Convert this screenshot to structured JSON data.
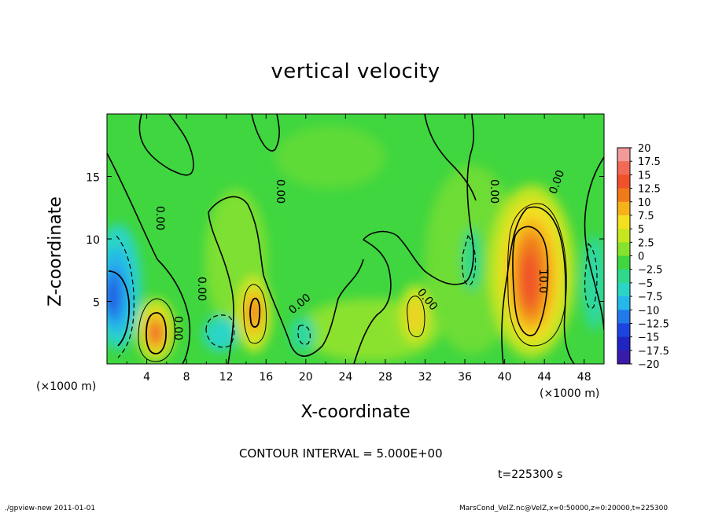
{
  "chart_data": {
    "type": "heatmap",
    "title": "vertical velocity",
    "xlabel": "X-coordinate",
    "ylabel": "Z-coordinate",
    "x_unit_label": "(×1000 m)",
    "xlim": [
      0,
      50
    ],
    "ylim": [
      0,
      20
    ],
    "xticks": [
      "4",
      "8",
      "12",
      "16",
      "20",
      "24",
      "28",
      "32",
      "36",
      "40",
      "44",
      "48"
    ],
    "xtick_values": [
      4,
      8,
      12,
      16,
      20,
      24,
      28,
      32,
      36,
      40,
      44,
      48
    ],
    "yticks": [
      "5",
      "10",
      "15"
    ],
    "ytick_values": [
      5,
      10,
      15
    ],
    "colorbar": {
      "labels": [
        "20",
        "17.5",
        "15",
        "12.5",
        "10",
        "7.5",
        "5",
        "2.5",
        "0",
        "−2.5",
        "−5",
        "−7.5",
        "−10",
        "−12.5",
        "−15",
        "−17.5",
        "−20"
      ],
      "colors": [
        "#f39a9a",
        "#f26a55",
        "#f0502a",
        "#f07a1a",
        "#f5b21a",
        "#f2e021",
        "#c7e620",
        "#86e22c",
        "#3fd63f",
        "#2fd88a",
        "#2ad5c6",
        "#25b6ea",
        "#2279ea",
        "#1c44e0",
        "#2024c0",
        "#3a1aaa",
        "#6a1ab0"
      ]
    },
    "features": [
      {
        "kind": "updraft",
        "x": 42.5,
        "z": 6.5,
        "peak": 12.5
      },
      {
        "kind": "updraft",
        "x": 5,
        "z": 2.5,
        "peak": 10
      },
      {
        "kind": "updraft",
        "x": 15,
        "z": 4,
        "peak": 10
      },
      {
        "kind": "updraft",
        "x": 31,
        "z": 4.5,
        "peak": 7.5
      },
      {
        "kind": "downdraft",
        "x": 1,
        "z": 5.5,
        "peak": -12.5
      },
      {
        "kind": "downdraft",
        "x": 11,
        "z": 2.5,
        "peak": -5
      }
    ],
    "contour_labels": [
      "0.00",
      "10.0"
    ],
    "contour_interval": "CONTOUR INTERVAL = 5.000E+00",
    "time": "t=225300 s"
  },
  "footer": {
    "left": "./gpview-new   2011-01-01",
    "right": "MarsCond_VelZ.nc@VelZ,x=0:50000,z=0:20000,t=225300"
  }
}
